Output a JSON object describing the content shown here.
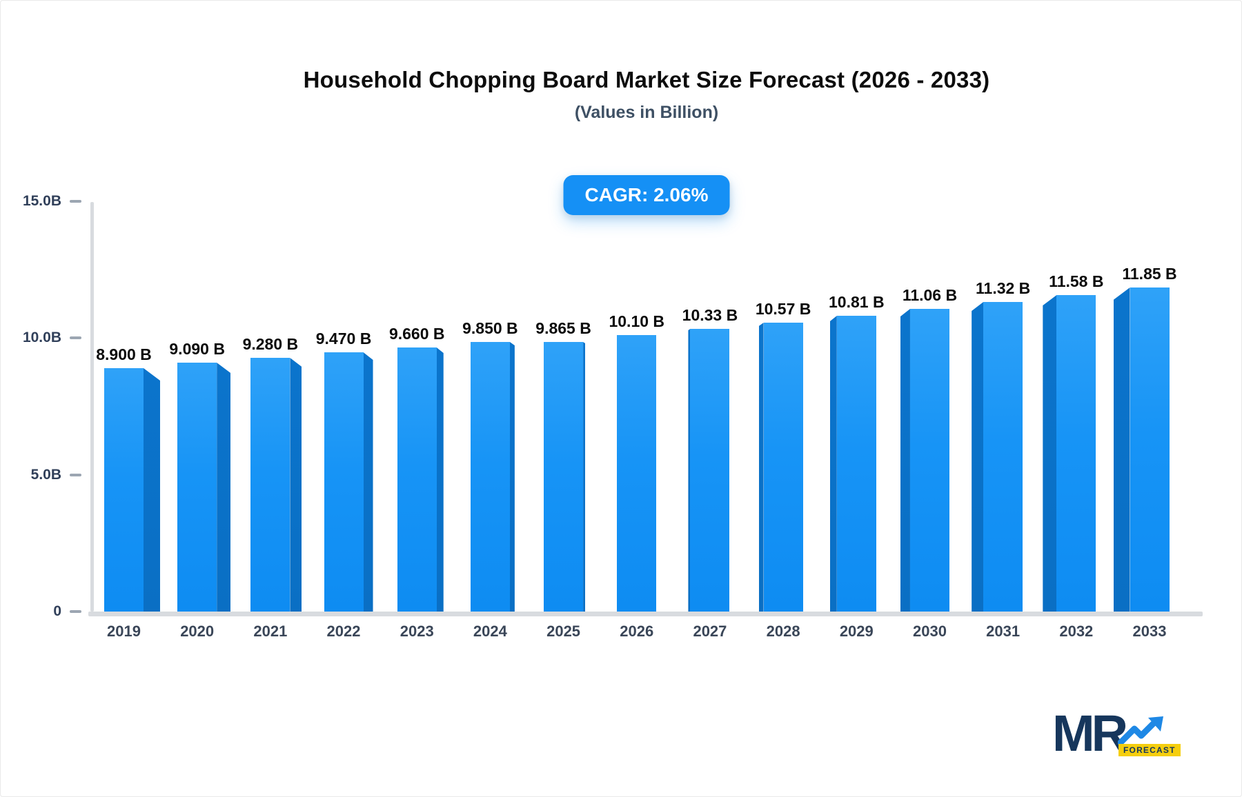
{
  "header": {
    "title": "Household Chopping Board Market Size Forecast (2026 - 2033)",
    "subtitle": "(Values in Billion)",
    "cagr_badge": "CAGR: 2.06%"
  },
  "chart_data": {
    "type": "bar",
    "title": "Household Chopping Board Market Size Forecast (2026 - 2033)",
    "subtitle": "(Values in Billion)",
    "categories": [
      "2019",
      "2020",
      "2021",
      "2022",
      "2023",
      "2024",
      "2025",
      "2026",
      "2027",
      "2028",
      "2029",
      "2030",
      "2031",
      "2032",
      "2033"
    ],
    "values": [
      8.9,
      9.09,
      9.28,
      9.47,
      9.66,
      9.85,
      9.865,
      10.1,
      10.33,
      10.57,
      10.81,
      11.06,
      11.32,
      11.58,
      11.85
    ],
    "value_labels": [
      "8.900 B",
      "9.090 B",
      "9.280 B",
      "9.470 B",
      "9.660 B",
      "9.850 B",
      "9.865 B",
      "10.10 B",
      "10.33 B",
      "10.57 B",
      "10.81 B",
      "11.06 B",
      "11.32 B",
      "11.58 B",
      "11.85 B"
    ],
    "ylim": [
      0,
      15
    ],
    "y_ticks": [
      {
        "label": "15.0B",
        "value": 15
      },
      {
        "label": "10.0B",
        "value": 10
      },
      {
        "label": "5.0B",
        "value": 5
      },
      {
        "label": "0",
        "value": 0
      }
    ],
    "grid": false,
    "legend": false,
    "cagr": "2.06%",
    "bar_color": "#1794F6",
    "bar_side_color": "#0A6FC4",
    "axis_color": "#D8DBDF"
  },
  "branding": {
    "logo_text": "MR",
    "logo_sub": "FORECAST",
    "navy": "#16365C",
    "arrow_blue": "#1E88E5",
    "yellow": "#F5CE0E"
  },
  "colors": {
    "accent_blue": "#1590F5"
  }
}
